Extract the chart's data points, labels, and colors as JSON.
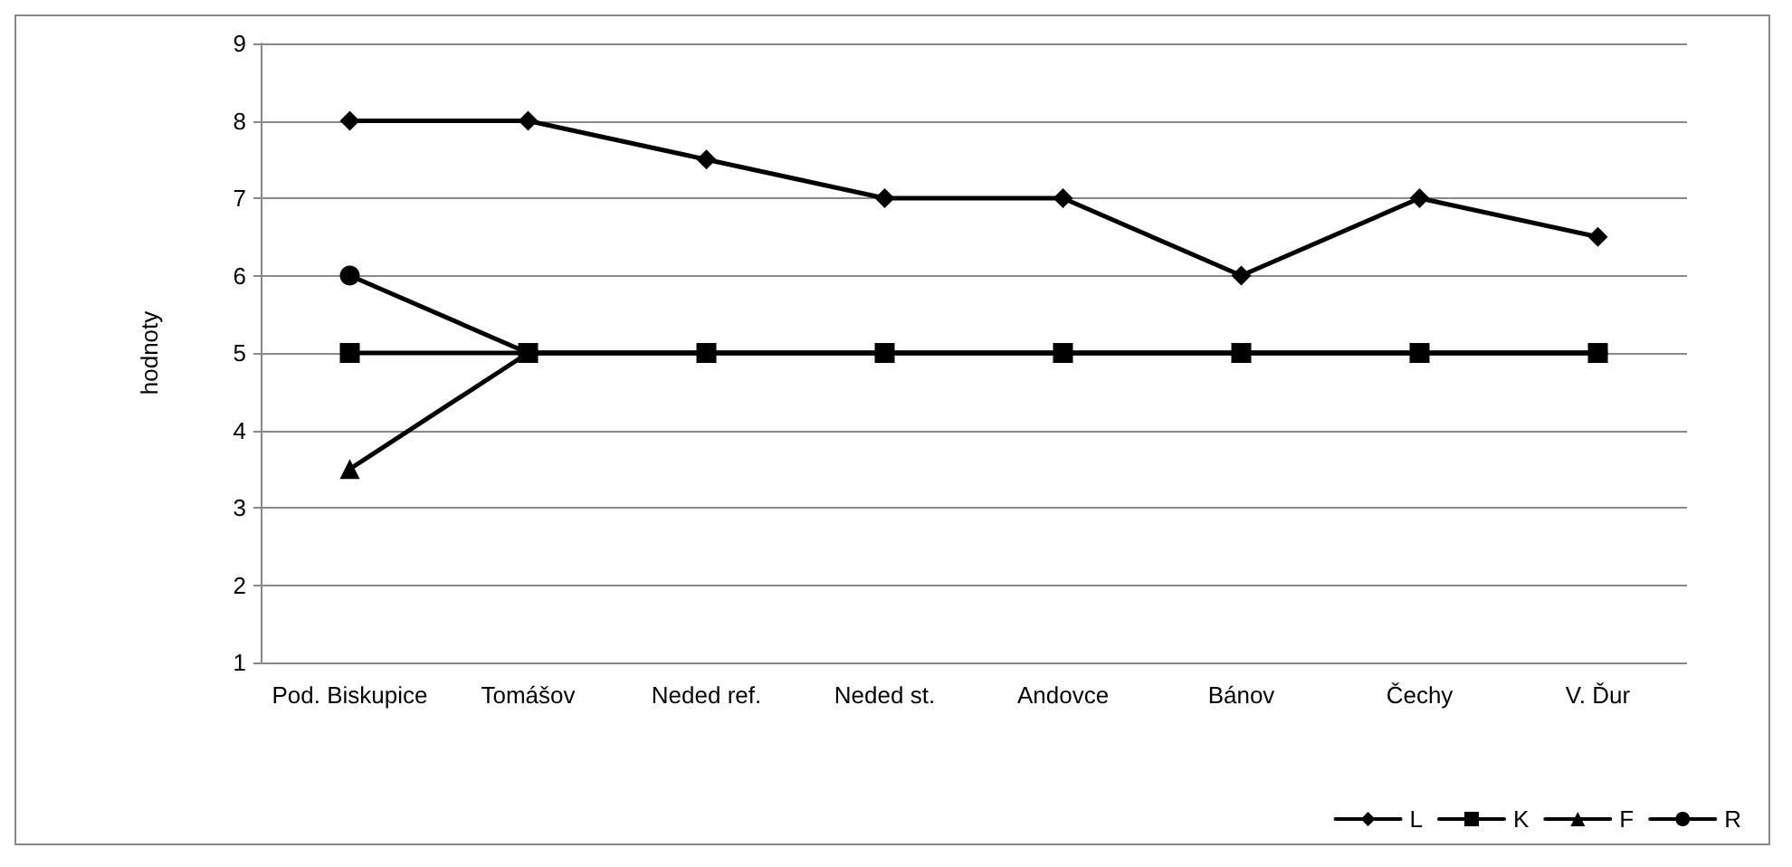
{
  "chart_data": {
    "type": "line",
    "ylabel": "hodnoty",
    "categories": [
      "Pod. Biskupice",
      "Tomášov",
      "Neded ref.",
      "Neded st.",
      "Andovce",
      "Bánov",
      "Čechy",
      "V. Ďur"
    ],
    "series": [
      {
        "name": "L",
        "color": "#000000",
        "marker": "diamond",
        "values": [
          8,
          8,
          7.5,
          7,
          7,
          6,
          7,
          6.5
        ]
      },
      {
        "name": "K",
        "color": "#000000",
        "marker": "square",
        "values": [
          5,
          5,
          5,
          5,
          5,
          5,
          5,
          5
        ]
      },
      {
        "name": "F",
        "color": "#000000",
        "marker": "triangle",
        "values": [
          3.5,
          5,
          5,
          5,
          5,
          5,
          5,
          5
        ]
      },
      {
        "name": "R",
        "color": "#000000",
        "marker": "circle",
        "values": [
          6,
          5,
          5,
          5,
          5,
          5,
          5,
          5
        ]
      }
    ],
    "ylim": [
      1,
      9
    ],
    "yticks": [
      1,
      2,
      3,
      4,
      5,
      6,
      7,
      8,
      9
    ],
    "grid": "y",
    "legend": "bottom right",
    "line_style": "solid"
  }
}
